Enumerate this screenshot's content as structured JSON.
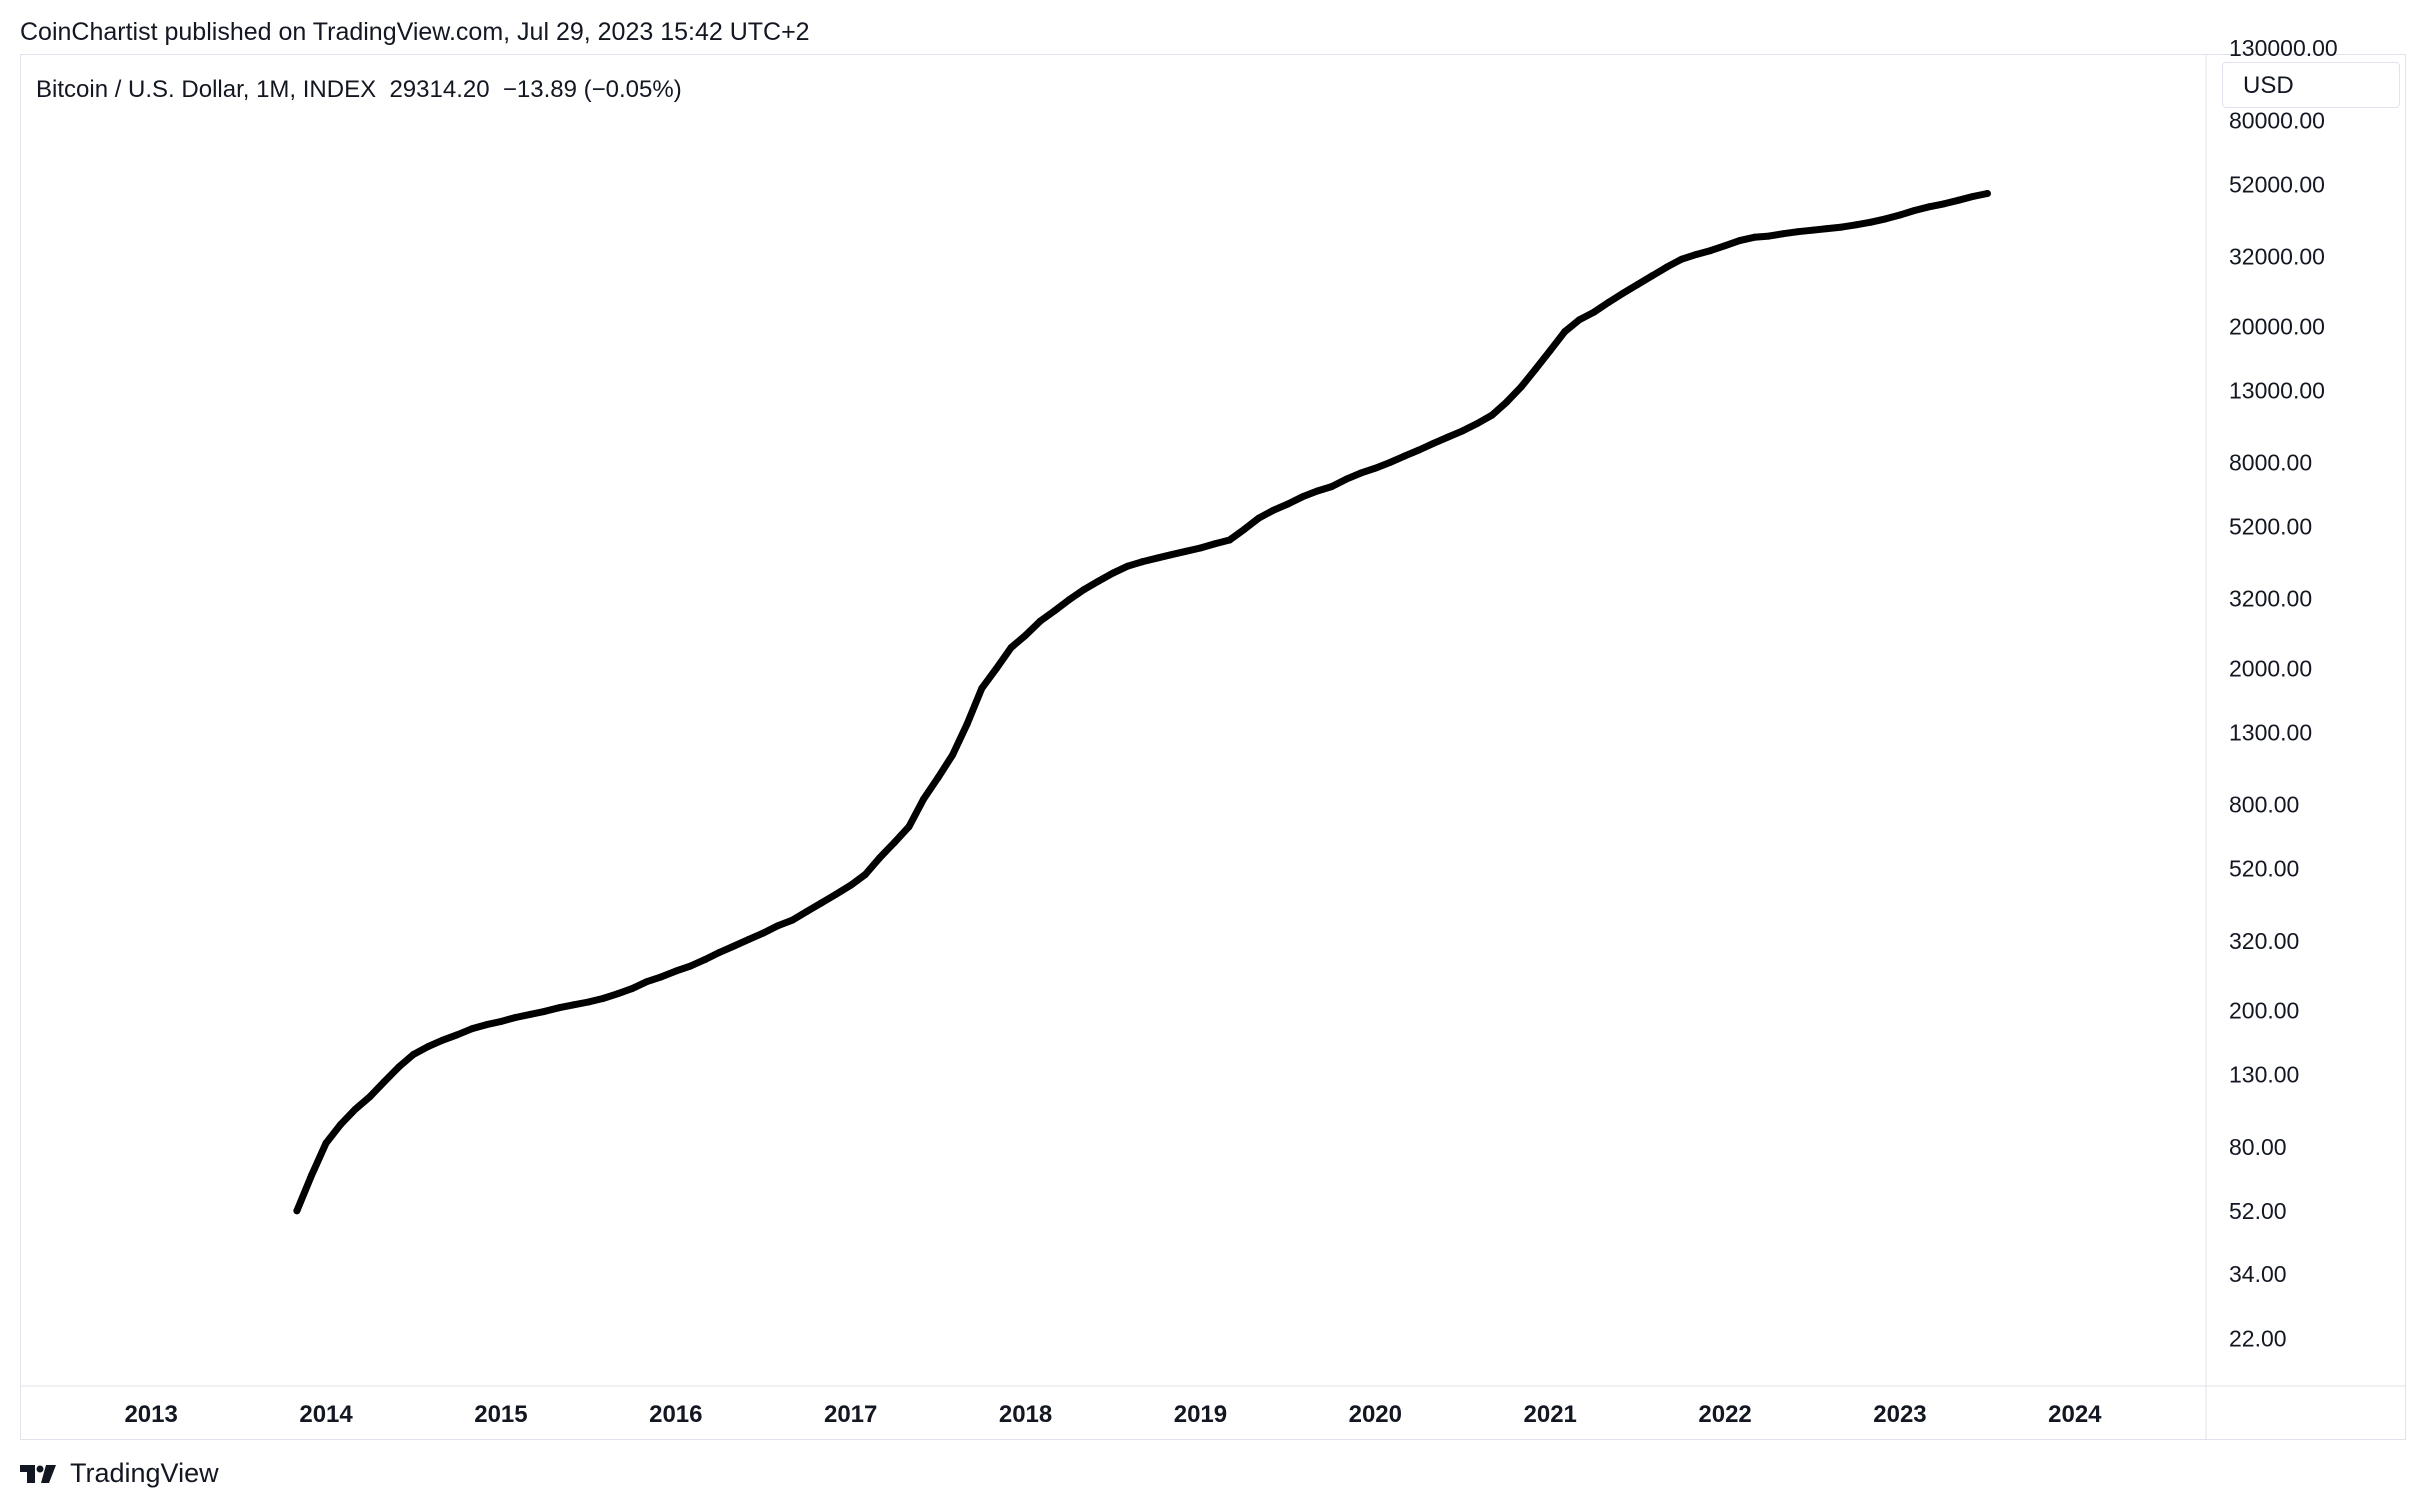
{
  "header": {
    "published_text": "CoinChartist published on TradingView.com, Jul 29, 2023 15:42 UTC+2"
  },
  "legend": {
    "symbol": "Bitcoin / U.S. Dollar, 1M, INDEX",
    "price": "29314.20",
    "change": "−13.89 (−0.05%)"
  },
  "scale": {
    "currency_label": "USD"
  },
  "footer": {
    "brand": "TradingView",
    "logo_icon": "tradingview-logo-icon"
  },
  "colors": {
    "line": "#000000",
    "grid_border": "#e0e3eb",
    "text": "#131722"
  },
  "chart_data": {
    "type": "line",
    "yscale": "log",
    "ylim": [
      16,
      125000
    ],
    "xlim": [
      "2012-04-01",
      "2024-10-01"
    ],
    "x_tick_labels": [
      "2013",
      "2014",
      "2015",
      "2016",
      "2017",
      "2018",
      "2019",
      "2020",
      "2021",
      "2022",
      "2023",
      "2024"
    ],
    "y_tick_labels": [
      "130000.00",
      "80000.00",
      "52000.00",
      "32000.00",
      "20000.00",
      "13000.00",
      "8000.00",
      "5200.00",
      "3200.00",
      "2000.00",
      "1300.00",
      "800.00",
      "520.00",
      "320.00",
      "200.00",
      "130.00",
      "80.00",
      "52.00",
      "34.00",
      "22.00"
    ],
    "series": [
      {
        "points": [
          [
            "2013-11",
            52
          ],
          [
            "2013-12",
            66
          ],
          [
            "2014-01",
            82
          ],
          [
            "2014-02",
            93
          ],
          [
            "2014-03",
            103
          ],
          [
            "2014-04",
            112
          ],
          [
            "2014-05",
            124
          ],
          [
            "2014-06",
            137
          ],
          [
            "2014-07",
            149
          ],
          [
            "2014-08",
            157
          ],
          [
            "2014-09",
            164
          ],
          [
            "2014-10",
            170
          ],
          [
            "2014-11",
            177
          ],
          [
            "2014-12",
            182
          ],
          [
            "2015-01",
            186
          ],
          [
            "2015-02",
            191
          ],
          [
            "2015-03",
            195
          ],
          [
            "2015-04",
            199
          ],
          [
            "2015-05",
            204
          ],
          [
            "2015-06",
            208
          ],
          [
            "2015-07",
            212
          ],
          [
            "2015-08",
            217
          ],
          [
            "2015-09",
            224
          ],
          [
            "2015-10",
            232
          ],
          [
            "2015-11",
            243
          ],
          [
            "2015-12",
            251
          ],
          [
            "2016-01",
            261
          ],
          [
            "2016-02",
            270
          ],
          [
            "2016-03",
            282
          ],
          [
            "2016-04",
            296
          ],
          [
            "2016-05",
            309
          ],
          [
            "2016-06",
            323
          ],
          [
            "2016-07",
            337
          ],
          [
            "2016-08",
            354
          ],
          [
            "2016-09",
            368
          ],
          [
            "2016-10",
            390
          ],
          [
            "2016-11",
            413
          ],
          [
            "2016-12",
            438
          ],
          [
            "2017-01",
            465
          ],
          [
            "2017-02",
            500
          ],
          [
            "2017-03",
            560
          ],
          [
            "2017-04",
            620
          ],
          [
            "2017-05",
            690
          ],
          [
            "2017-06",
            830
          ],
          [
            "2017-07",
            960
          ],
          [
            "2017-08",
            1120
          ],
          [
            "2017-09",
            1380
          ],
          [
            "2017-10",
            1750
          ],
          [
            "2017-11",
            2000
          ],
          [
            "2017-12",
            2300
          ],
          [
            "2018-01",
            2500
          ],
          [
            "2018-02",
            2750
          ],
          [
            "2018-03",
            2950
          ],
          [
            "2018-04",
            3180
          ],
          [
            "2018-05",
            3400
          ],
          [
            "2018-06",
            3600
          ],
          [
            "2018-07",
            3800
          ],
          [
            "2018-08",
            3980
          ],
          [
            "2018-09",
            4100
          ],
          [
            "2018-10",
            4200
          ],
          [
            "2018-11",
            4300
          ],
          [
            "2018-12",
            4400
          ],
          [
            "2019-01",
            4500
          ],
          [
            "2019-02",
            4630
          ],
          [
            "2019-03",
            4750
          ],
          [
            "2019-04",
            5100
          ],
          [
            "2019-05",
            5500
          ],
          [
            "2019-06",
            5800
          ],
          [
            "2019-07",
            6050
          ],
          [
            "2019-08",
            6350
          ],
          [
            "2019-09",
            6600
          ],
          [
            "2019-10",
            6800
          ],
          [
            "2019-11",
            7150
          ],
          [
            "2019-12",
            7450
          ],
          [
            "2020-01",
            7700
          ],
          [
            "2020-02",
            8000
          ],
          [
            "2020-03",
            8350
          ],
          [
            "2020-04",
            8700
          ],
          [
            "2020-05",
            9100
          ],
          [
            "2020-06",
            9500
          ],
          [
            "2020-07",
            9900
          ],
          [
            "2020-08",
            10400
          ],
          [
            "2020-09",
            11000
          ],
          [
            "2020-10",
            12000
          ],
          [
            "2020-11",
            13300
          ],
          [
            "2020-12",
            15000
          ],
          [
            "2021-01",
            17000
          ],
          [
            "2021-02",
            19300
          ],
          [
            "2021-03",
            20900
          ],
          [
            "2021-04",
            22000
          ],
          [
            "2021-05",
            23500
          ],
          [
            "2021-06",
            25000
          ],
          [
            "2021-07",
            26500
          ],
          [
            "2021-08",
            28100
          ],
          [
            "2021-09",
            29800
          ],
          [
            "2021-10",
            31400
          ],
          [
            "2021-11",
            32400
          ],
          [
            "2021-12",
            33300
          ],
          [
            "2022-01",
            34400
          ],
          [
            "2022-02",
            35600
          ],
          [
            "2022-03",
            36400
          ],
          [
            "2022-04",
            36700
          ],
          [
            "2022-05",
            37300
          ],
          [
            "2022-06",
            37800
          ],
          [
            "2022-07",
            38200
          ],
          [
            "2022-08",
            38600
          ],
          [
            "2022-09",
            39000
          ],
          [
            "2022-10",
            39600
          ],
          [
            "2022-11",
            40300
          ],
          [
            "2022-12",
            41200
          ],
          [
            "2023-01",
            42300
          ],
          [
            "2023-02",
            43600
          ],
          [
            "2023-03",
            44700
          ],
          [
            "2023-04",
            45600
          ],
          [
            "2023-05",
            46700
          ],
          [
            "2023-06",
            47900
          ],
          [
            "2023-07",
            48900
          ]
        ]
      }
    ]
  }
}
